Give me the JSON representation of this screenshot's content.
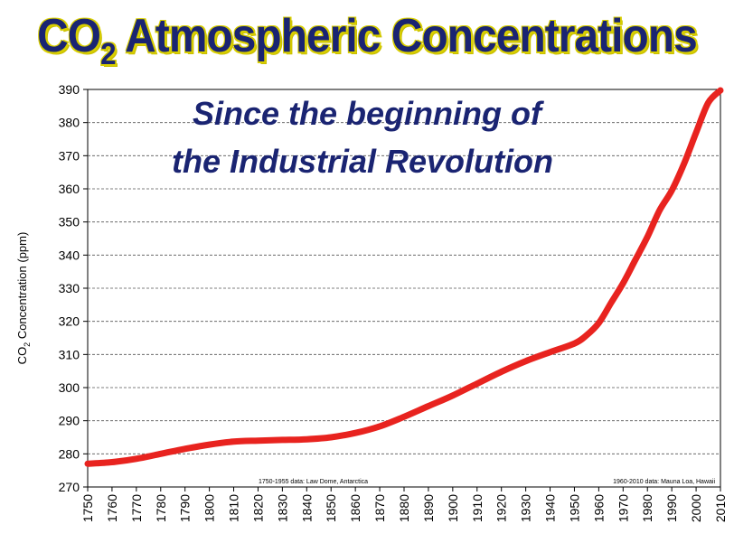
{
  "title": {
    "main": "CO",
    "sub": "2",
    "rest": " Atmospheric Concentrations"
  },
  "chart_data": {
    "type": "line",
    "subtitle_lines": [
      "Since the beginning of",
      "the Industrial Revolution"
    ],
    "ylabel_main": "CO",
    "ylabel_sub": "2",
    "ylabel_rest": " Concentration (ppm)",
    "xlabel": "",
    "xlim": [
      1750,
      2010
    ],
    "ylim": [
      270,
      390
    ],
    "x_ticks": [
      1750,
      1760,
      1770,
      1780,
      1790,
      1800,
      1810,
      1820,
      1830,
      1840,
      1850,
      1860,
      1870,
      1880,
      1890,
      1900,
      1910,
      1920,
      1930,
      1940,
      1950,
      1960,
      1970,
      1980,
      1990,
      2000,
      2010
    ],
    "y_ticks": [
      270,
      280,
      290,
      300,
      310,
      320,
      330,
      340,
      350,
      360,
      370,
      380,
      390
    ],
    "grid": "horizontal-dashed",
    "line_color": "#e8231f",
    "series": [
      {
        "x": [
          1750,
          1760,
          1770,
          1780,
          1790,
          1800,
          1810,
          1820,
          1830,
          1840,
          1850,
          1860,
          1870,
          1880,
          1890,
          1900,
          1910,
          1920,
          1930,
          1940,
          1950,
          1955,
          1960,
          1965,
          1970,
          1975,
          1980,
          1985,
          1990,
          1995,
          2000,
          2005,
          2010
        ],
        "y": [
          277,
          277.5,
          278.5,
          280,
          281.5,
          282.8,
          283.7,
          284,
          284.2,
          284.4,
          285,
          286.3,
          288.3,
          291.2,
          294.4,
          297.6,
          301.2,
          304.8,
          308,
          310.7,
          313.3,
          315.8,
          319.5,
          325.5,
          331.5,
          338.5,
          345.5,
          353.5,
          359.5,
          367.5,
          377,
          386,
          393
        ]
      }
    ],
    "annotations": [
      "1750-1955 data: Law Dome, Antarctica",
      "1960-2010 data: Mauna Loa, Hawaii"
    ]
  }
}
